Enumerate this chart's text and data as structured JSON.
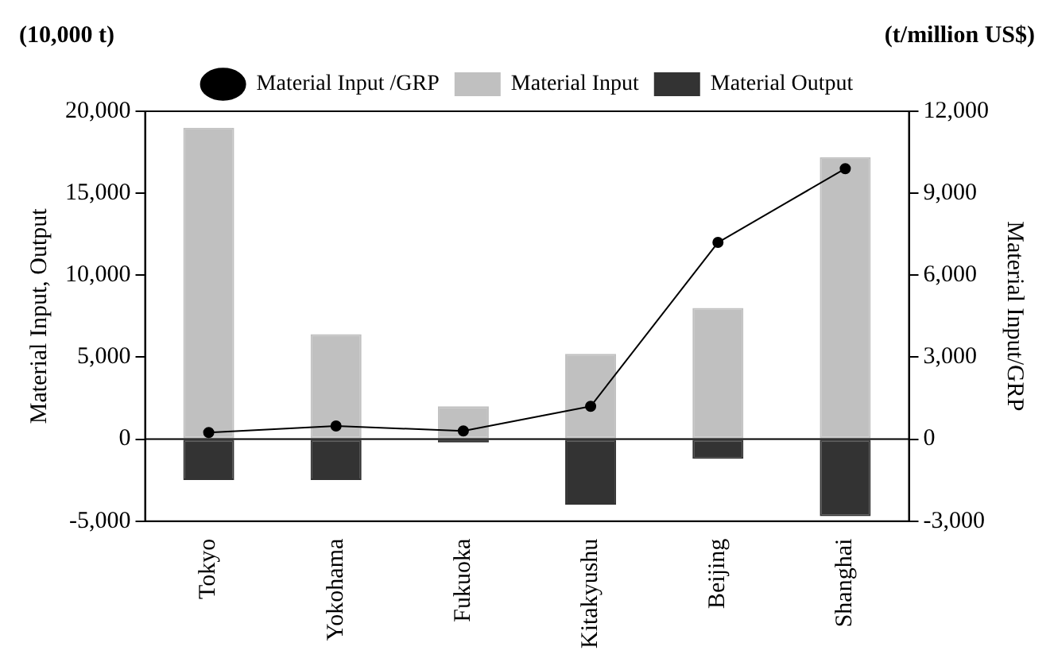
{
  "chart_data": {
    "type": "bar",
    "categories": [
      "Tokyo",
      "Yokohama",
      "Fukuoka",
      "Kitakyushu",
      "Beijing",
      "Shanghai"
    ],
    "series": [
      {
        "name": "Material Input",
        "color": "#c0c0c0",
        "values": [
          19000,
          6400,
          2000,
          5200,
          8000,
          17200
        ]
      },
      {
        "name": "Material Output",
        "color": "#333333",
        "values": [
          -2500,
          -2500,
          -200,
          -4000,
          -1200,
          -4700
        ]
      },
      {
        "name": "Material Input /GRP",
        "type": "line",
        "axis": "y2",
        "color": "#000000",
        "values": [
          240,
          480,
          300,
          1200,
          7200,
          9900
        ]
      }
    ],
    "stacked": true,
    "ylabel": "Material Input, Output",
    "y2label": "Material Input/GRP",
    "ylim": [
      -5000,
      20000
    ],
    "yticks": [
      {
        "value": -5000,
        "label": "-5,000"
      },
      0,
      {
        "value": 5000,
        "label": "5,000"
      },
      {
        "value": 10000,
        "label": "10,000"
      },
      {
        "value": 15000,
        "label": "15,000"
      },
      {
        "value": 20000,
        "label": "20,000"
      }
    ],
    "y2lim": [
      -3000,
      12000
    ],
    "y2ticks": [
      {
        "value": -3000,
        "label": "-3,000"
      },
      0,
      {
        "value": 3000,
        "label": "3,000"
      },
      {
        "value": 6000,
        "label": "6,000"
      },
      {
        "value": 9000,
        "label": "9,000"
      },
      {
        "value": 12000,
        "label": "12,000"
      }
    ],
    "ref_lines": [
      {
        "axis": "y",
        "value": 0,
        "color": "#000000"
      }
    ],
    "annotations": [
      "(10,000 t)",
      "(t/million US$)"
    ],
    "legend": "top",
    "marker": "circle",
    "grid": false
  }
}
